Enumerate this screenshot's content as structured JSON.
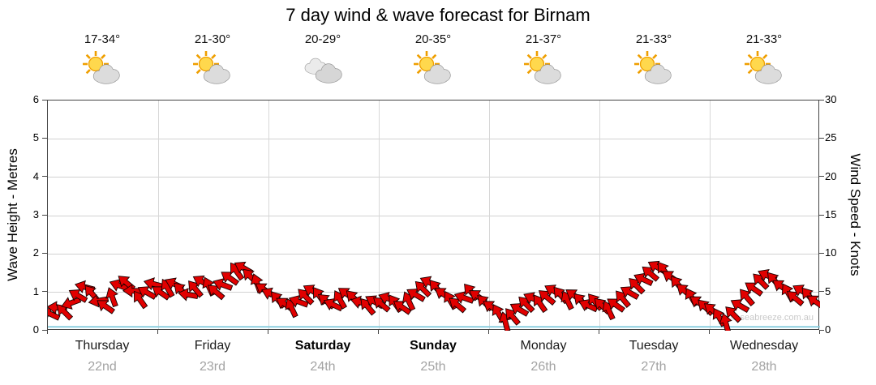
{
  "title": "7 day wind & wave forecast for Birnam",
  "watermark": "© seabreeze.com.au",
  "axes": {
    "left_title": "Wave Height - Metres",
    "right_title": "Wind Speed - Knots",
    "left_ticks": [
      0,
      1,
      2,
      3,
      4,
      5,
      6
    ],
    "right_ticks": [
      0,
      5,
      10,
      15,
      20,
      25,
      30
    ]
  },
  "days": [
    {
      "name": "Thursday",
      "date": "22nd",
      "temp_range": "17-34°",
      "icon": "partly-cloudy",
      "weekend": false
    },
    {
      "name": "Friday",
      "date": "23rd",
      "temp_range": "21-30°",
      "icon": "partly-cloudy",
      "weekend": false
    },
    {
      "name": "Saturday",
      "date": "24th",
      "temp_range": "20-29°",
      "icon": "cloudy",
      "weekend": true
    },
    {
      "name": "Sunday",
      "date": "25th",
      "temp_range": "20-35°",
      "icon": "partly-cloudy",
      "weekend": true
    },
    {
      "name": "Monday",
      "date": "26th",
      "temp_range": "21-37°",
      "icon": "partly-cloudy",
      "weekend": false
    },
    {
      "name": "Tuesday",
      "date": "27th",
      "temp_range": "21-33°",
      "icon": "partly-cloudy",
      "weekend": false
    },
    {
      "name": "Wednesday",
      "date": "28th",
      "temp_range": "21-33°",
      "icon": "partly-cloudy",
      "weekend": false
    }
  ],
  "chart_data": {
    "type": "scatter",
    "series_description": "Wind forecast arrows: [hour (0-168 over 7 days), wind speed in knots, arrow direction in degrees]; plus flat predicted wave-height line in metres",
    "categories": [
      "Thursday 22nd",
      "Friday 23rd",
      "Saturday 24th",
      "Sunday 25th",
      "Monday 26th",
      "Tuesday 27th",
      "Wednesday 28th"
    ],
    "hours_span": 168,
    "ylim_left_metres": [
      0,
      6
    ],
    "ylim_right_knots": [
      0,
      30
    ],
    "wave_height_line_m": 0.1,
    "arrow_color": "#e10000",
    "arrow_outline": "#1a0000",
    "wave_line_color": "#8ccfe0",
    "wind_arrows": [
      [
        0,
        2.2,
        205
      ],
      [
        1.5,
        3.0,
        185
      ],
      [
        3,
        2.5,
        225
      ],
      [
        4.5,
        3.6,
        160
      ],
      [
        6,
        4.6,
        210
      ],
      [
        7.5,
        5.7,
        195
      ],
      [
        9,
        4.9,
        230
      ],
      [
        10.5,
        3.9,
        170
      ],
      [
        12,
        3.2,
        215
      ],
      [
        13.5,
        4.4,
        250
      ],
      [
        15,
        5.9,
        200
      ],
      [
        16.5,
        6.3,
        220
      ],
      [
        18,
        5.2,
        180
      ],
      [
        19.5,
        4.1,
        235
      ],
      [
        21,
        5.0,
        210
      ],
      [
        22.5,
        6.1,
        195
      ],
      [
        24,
        5.0,
        215
      ],
      [
        25.5,
        5.6,
        240
      ],
      [
        27,
        6.1,
        205
      ],
      [
        28.5,
        5.3,
        225
      ],
      [
        30,
        4.7,
        190
      ],
      [
        31.5,
        5.5,
        230
      ],
      [
        33,
        6.4,
        210
      ],
      [
        34.5,
        5.8,
        245
      ],
      [
        36,
        5.1,
        220
      ],
      [
        37.5,
        6.0,
        200
      ],
      [
        39,
        6.9,
        215
      ],
      [
        40.5,
        7.8,
        235
      ],
      [
        42,
        8.2,
        210
      ],
      [
        43.5,
        7.1,
        225
      ],
      [
        45,
        6.2,
        250
      ],
      [
        46.5,
        5.4,
        215
      ],
      [
        48,
        4.8,
        205
      ],
      [
        49.5,
        4.1,
        230
      ],
      [
        51,
        3.5,
        215
      ],
      [
        52.5,
        3.0,
        245
      ],
      [
        54,
        3.8,
        200
      ],
      [
        55.5,
        4.5,
        225
      ],
      [
        57,
        5.2,
        210
      ],
      [
        58.5,
        4.6,
        235
      ],
      [
        60,
        3.9,
        220
      ],
      [
        61.5,
        3.4,
        205
      ],
      [
        63,
        4.1,
        240
      ],
      [
        64.5,
        4.8,
        215
      ],
      [
        66,
        4.3,
        225
      ],
      [
        67.5,
        3.7,
        195
      ],
      [
        69,
        3.2,
        230
      ],
      [
        70.5,
        3.8,
        210
      ],
      [
        72,
        3.5,
        220
      ],
      [
        73.5,
        4.2,
        200
      ],
      [
        75,
        3.6,
        235
      ],
      [
        76.5,
        3.1,
        215
      ],
      [
        78,
        3.9,
        245
      ],
      [
        79.5,
        4.7,
        210
      ],
      [
        81,
        5.5,
        225
      ],
      [
        82.5,
        6.3,
        205
      ],
      [
        84,
        5.6,
        230
      ],
      [
        85.5,
        4.8,
        215
      ],
      [
        87,
        4.0,
        240
      ],
      [
        88.5,
        3.4,
        220
      ],
      [
        90,
        4.3,
        200
      ],
      [
        91.5,
        5.1,
        230
      ],
      [
        93,
        4.5,
        215
      ],
      [
        94.5,
        3.7,
        225
      ],
      [
        96,
        3.1,
        215
      ],
      [
        97.5,
        2.3,
        240
      ],
      [
        99,
        1.2,
        255
      ],
      [
        100.5,
        1.9,
        230
      ],
      [
        102,
        2.8,
        210
      ],
      [
        103.5,
        3.5,
        225
      ],
      [
        105,
        4.2,
        205
      ],
      [
        106.5,
        3.6,
        235
      ],
      [
        108,
        4.4,
        220
      ],
      [
        109.5,
        5.2,
        210
      ],
      [
        111,
        4.7,
        230
      ],
      [
        112.5,
        4.0,
        245
      ],
      [
        114,
        4.6,
        215
      ],
      [
        115.5,
        3.9,
        225
      ],
      [
        117,
        3.3,
        205
      ],
      [
        118.5,
        3.8,
        230
      ],
      [
        120,
        3.3,
        225
      ],
      [
        121.5,
        2.7,
        245
      ],
      [
        123,
        3.4,
        215
      ],
      [
        124.5,
        4.2,
        230
      ],
      [
        126,
        5.0,
        210
      ],
      [
        127.5,
        5.9,
        225
      ],
      [
        129,
        6.7,
        205
      ],
      [
        130.5,
        7.5,
        220
      ],
      [
        132,
        8.3,
        210
      ],
      [
        133.5,
        7.9,
        235
      ],
      [
        135,
        7.0,
        215
      ],
      [
        136.5,
        6.1,
        230
      ],
      [
        138,
        5.2,
        220
      ],
      [
        139.5,
        4.4,
        240
      ],
      [
        141,
        3.7,
        215
      ],
      [
        142.5,
        3.1,
        225
      ],
      [
        144,
        2.7,
        220
      ],
      [
        145.5,
        1.8,
        240
      ],
      [
        147,
        1.0,
        255
      ],
      [
        148.5,
        2.2,
        225
      ],
      [
        150,
        3.3,
        210
      ],
      [
        151.5,
        4.4,
        230
      ],
      [
        153,
        5.5,
        215
      ],
      [
        154.5,
        6.5,
        225
      ],
      [
        156,
        7.2,
        205
      ],
      [
        157.5,
        6.6,
        230
      ],
      [
        159,
        5.8,
        215
      ],
      [
        160.5,
        5.0,
        240
      ],
      [
        162,
        4.3,
        220
      ],
      [
        163.5,
        5.2,
        210
      ],
      [
        165,
        4.6,
        230
      ],
      [
        166.5,
        3.8,
        215
      ]
    ]
  }
}
